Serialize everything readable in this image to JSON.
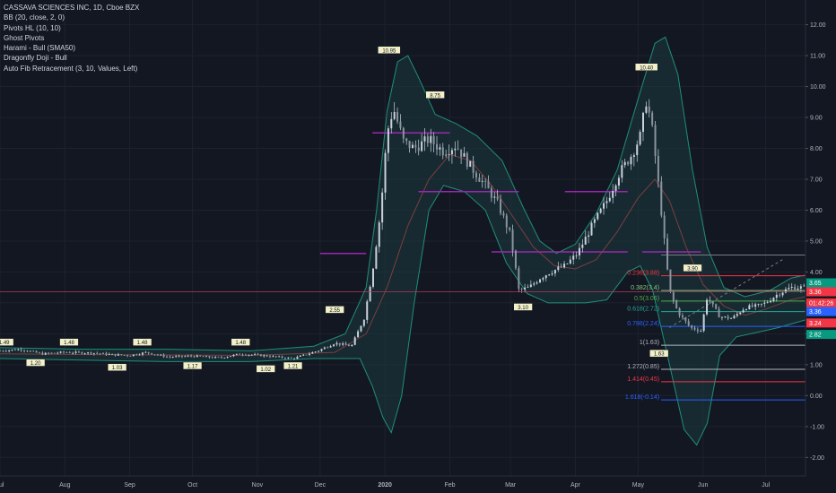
{
  "legend": {
    "title": "CASSAVA SCIENCES INC, 1D, Cboe BZX",
    "indicators": [
      "BB (20, close, 2, 0)",
      "Pivots HL (10, 10)",
      "Ghost Pivots",
      "Harami - Bull (SMA50)",
      "Dragonfly Doji - Bull",
      "Auto Fib Retracement (3, 10, Values, Left)"
    ]
  },
  "colors": {
    "background": "#131722",
    "grid": "#1e222d",
    "candle": "#c9d1dc",
    "bb_band": "#1f8f7a",
    "bb_fill": "#1b3b3e",
    "sma": "#7a3f3f",
    "pivot_line": "#9c27b0",
    "crosshair": "#b23c5a"
  },
  "chart_data": {
    "type": "candlestick",
    "y_axis": {
      "min": -2.6,
      "max": 12.8,
      "ticks": [
        "12.00",
        "11.00",
        "10.00",
        "9.00",
        "8.00",
        "7.00",
        "6.00",
        "5.00",
        "4.00",
        "3.00",
        "2.00",
        "1.00",
        "0.00",
        "-1.00",
        "-2.00"
      ]
    },
    "x_axis": {
      "labels": [
        {
          "label": "Jul",
          "day": 0
        },
        {
          "label": "Aug",
          "day": 31
        },
        {
          "label": "Sep",
          "day": 62
        },
        {
          "label": "Oct",
          "day": 92
        },
        {
          "label": "Nov",
          "day": 123
        },
        {
          "label": "Dec",
          "day": 153
        },
        {
          "label": "2020",
          "day": 184
        },
        {
          "label": "Feb",
          "day": 215
        },
        {
          "label": "Mar",
          "day": 244
        },
        {
          "label": "Apr",
          "day": 275
        },
        {
          "label": "May",
          "day": 305
        },
        {
          "label": "Jun",
          "day": 336
        },
        {
          "label": "Jul",
          "day": 366
        }
      ],
      "last_day": 385
    },
    "price_path": [
      [
        0,
        1.45
      ],
      [
        10,
        1.5
      ],
      [
        20,
        1.35
      ],
      [
        30,
        1.4
      ],
      [
        45,
        1.38
      ],
      [
        55,
        1.32
      ],
      [
        62,
        1.3
      ],
      [
        70,
        1.4
      ],
      [
        80,
        1.25
      ],
      [
        92,
        1.28
      ],
      [
        105,
        1.22
      ],
      [
        115,
        1.35
      ],
      [
        125,
        1.3
      ],
      [
        140,
        1.2
      ],
      [
        152,
        1.45
      ],
      [
        160,
        1.7
      ],
      [
        168,
        1.6
      ],
      [
        174,
        2.5
      ],
      [
        178,
        4.0
      ],
      [
        182,
        6.0
      ],
      [
        185,
        8.5
      ],
      [
        188,
        9.3
      ],
      [
        193,
        8.2
      ],
      [
        198,
        8.0
      ],
      [
        205,
        8.3
      ],
      [
        212,
        7.9
      ],
      [
        218,
        8.1
      ],
      [
        225,
        7.4
      ],
      [
        232,
        6.8
      ],
      [
        238,
        6.2
      ],
      [
        244,
        5.2
      ],
      [
        248,
        3.4
      ],
      [
        253,
        3.5
      ],
      [
        258,
        3.8
      ],
      [
        263,
        4.0
      ],
      [
        270,
        4.2
      ],
      [
        276,
        4.6
      ],
      [
        283,
        5.5
      ],
      [
        290,
        6.3
      ],
      [
        296,
        7.2
      ],
      [
        302,
        7.8
      ],
      [
        306,
        8.4
      ],
      [
        309,
        9.6
      ],
      [
        312,
        8.5
      ],
      [
        316,
        6.0
      ],
      [
        320,
        3.4
      ],
      [
        324,
        2.7
      ],
      [
        330,
        2.2
      ],
      [
        335,
        2.1
      ],
      [
        338,
        3.2
      ],
      [
        344,
        2.55
      ],
      [
        350,
        2.5
      ],
      [
        356,
        2.85
      ],
      [
        362,
        2.9
      ],
      [
        366,
        3.0
      ],
      [
        372,
        3.3
      ],
      [
        378,
        3.5
      ],
      [
        385,
        3.5
      ]
    ],
    "bb_upper": [
      [
        0,
        1.55
      ],
      [
        40,
        1.5
      ],
      [
        80,
        1.5
      ],
      [
        120,
        1.45
      ],
      [
        150,
        1.6
      ],
      [
        165,
        2.0
      ],
      [
        175,
        3.5
      ],
      [
        180,
        6.0
      ],
      [
        185,
        9.2
      ],
      [
        190,
        10.8
      ],
      [
        195,
        11.0
      ],
      [
        200,
        10.3
      ],
      [
        208,
        9.1
      ],
      [
        218,
        8.8
      ],
      [
        228,
        8.4
      ],
      [
        240,
        7.6
      ],
      [
        250,
        6.1
      ],
      [
        258,
        5.0
      ],
      [
        266,
        4.6
      ],
      [
        275,
        4.9
      ],
      [
        285,
        5.9
      ],
      [
        295,
        7.3
      ],
      [
        305,
        9.6
      ],
      [
        313,
        11.4
      ],
      [
        318,
        11.6
      ],
      [
        324,
        10.4
      ],
      [
        331,
        7.3
      ],
      [
        338,
        4.8
      ],
      [
        346,
        3.5
      ],
      [
        356,
        3.2
      ],
      [
        368,
        3.4
      ],
      [
        378,
        3.8
      ],
      [
        385,
        3.9
      ]
    ],
    "bb_lower": [
      [
        0,
        1.2
      ],
      [
        40,
        1.15
      ],
      [
        80,
        1.1
      ],
      [
        120,
        1.1
      ],
      [
        150,
        1.2
      ],
      [
        165,
        1.2
      ],
      [
        172,
        1.2
      ],
      [
        178,
        0.3
      ],
      [
        183,
        -0.7
      ],
      [
        187,
        -1.2
      ],
      [
        192,
        0.0
      ],
      [
        198,
        3.0
      ],
      [
        205,
        6.0
      ],
      [
        212,
        6.8
      ],
      [
        222,
        6.6
      ],
      [
        232,
        6.0
      ],
      [
        242,
        4.3
      ],
      [
        252,
        3.3
      ],
      [
        262,
        3.0
      ],
      [
        272,
        3.0
      ],
      [
        280,
        3.0
      ],
      [
        290,
        3.1
      ],
      [
        300,
        4.0
      ],
      [
        306,
        4.2
      ],
      [
        312,
        3.4
      ],
      [
        320,
        1.0
      ],
      [
        327,
        -1.1
      ],
      [
        333,
        -1.6
      ],
      [
        338,
        -0.9
      ],
      [
        344,
        1.3
      ],
      [
        352,
        1.9
      ],
      [
        362,
        2.05
      ],
      [
        372,
        2.2
      ],
      [
        385,
        2.45
      ]
    ],
    "sma": [
      [
        0,
        1.35
      ],
      [
        60,
        1.32
      ],
      [
        120,
        1.3
      ],
      [
        160,
        1.4
      ],
      [
        175,
        2.0
      ],
      [
        185,
        3.5
      ],
      [
        195,
        5.5
      ],
      [
        205,
        7.0
      ],
      [
        215,
        7.8
      ],
      [
        225,
        7.6
      ],
      [
        235,
        6.8
      ],
      [
        245,
        5.8
      ],
      [
        255,
        4.8
      ],
      [
        265,
        4.2
      ],
      [
        275,
        4.1
      ],
      [
        285,
        4.4
      ],
      [
        295,
        5.3
      ],
      [
        305,
        6.4
      ],
      [
        313,
        7.0
      ],
      [
        320,
        6.3
      ],
      [
        328,
        4.8
      ],
      [
        336,
        3.6
      ],
      [
        346,
        2.9
      ],
      [
        356,
        2.6
      ],
      [
        366,
        2.8
      ],
      [
        378,
        3.1
      ],
      [
        385,
        3.2
      ]
    ],
    "pivot_labels": [
      {
        "day": 2,
        "value": "1.49",
        "type": "high",
        "price": 1.5
      },
      {
        "day": 17,
        "value": "1.20",
        "type": "low",
        "price": 1.3
      },
      {
        "day": 33,
        "value": "1.48",
        "type": "high",
        "price": 1.5
      },
      {
        "day": 56,
        "value": "1.03",
        "type": "low",
        "price": 1.15
      },
      {
        "day": 68,
        "value": "1.48",
        "type": "high",
        "price": 1.5
      },
      {
        "day": 92,
        "value": "1.17",
        "type": "low",
        "price": 1.2
      },
      {
        "day": 115,
        "value": "1.48",
        "type": "high",
        "price": 1.5
      },
      {
        "day": 127,
        "value": "1.02",
        "type": "low",
        "price": 1.1
      },
      {
        "day": 140,
        "value": "1.21",
        "type": "low",
        "price": 1.2
      },
      {
        "day": 160,
        "value": "2.55",
        "type": "high",
        "price": 2.55
      },
      {
        "day": 186,
        "value": "10.95",
        "type": "high",
        "price": 10.95
      },
      {
        "day": 208,
        "value": "8.75",
        "type": "high",
        "price": 9.5
      },
      {
        "day": 250,
        "value": "3.10",
        "type": "low",
        "price": 3.1
      },
      {
        "day": 309,
        "value": "10.40",
        "type": "high",
        "price": 10.4
      },
      {
        "day": 331,
        "value": "3.90",
        "type": "high",
        "price": 3.9
      },
      {
        "day": 315,
        "value": "1.63",
        "type": "low",
        "price": 1.6
      }
    ],
    "pivot_lines": [
      {
        "start": 153,
        "end": 175,
        "price": 4.6
      },
      {
        "start": 178,
        "end": 215,
        "price": 8.5
      },
      {
        "start": 200,
        "end": 248,
        "price": 6.6
      },
      {
        "start": 235,
        "end": 300,
        "price": 4.65
      },
      {
        "start": 270,
        "end": 300,
        "price": 6.6
      },
      {
        "start": 307,
        "end": 335,
        "price": 4.65
      }
    ],
    "fib_levels": [
      {
        "label": "0.236(3.88)",
        "price": 3.88,
        "color": "#f23645"
      },
      {
        "label": "0.382(3.4)",
        "price": 3.4,
        "color": "#81c784"
      },
      {
        "label": "0.5(3.06)",
        "price": 3.06,
        "color": "#4caf50"
      },
      {
        "label": "0.618(2.72)",
        "price": 2.72,
        "color": "#26a69a"
      },
      {
        "label": "0.786(2.24)",
        "price": 2.24,
        "color": "#2962ff"
      },
      {
        "label": "1(1.63)",
        "price": 1.63,
        "color": "#b2b5be"
      },
      {
        "label": "1.272(0.85)",
        "price": 0.85,
        "color": "#b2b5be"
      },
      {
        "label": "1.414(0.45)",
        "price": 0.45,
        "color": "#f23645"
      },
      {
        "label": "1.618(-0.14)",
        "price": -0.14,
        "color": "#2962ff"
      }
    ],
    "fib_top": {
      "price": 4.55
    },
    "crosshair_price": 3.36,
    "price_badges": [
      {
        "text": "3.65",
        "price": 3.65,
        "color": "#089981"
      },
      {
        "text": "3.36",
        "price": 3.36,
        "color": "#f23645"
      },
      {
        "text": "01:42:26",
        "price": 3.0,
        "color": "#f23645"
      },
      {
        "text": "3.36",
        "price": 2.72,
        "color": "#2962ff"
      },
      {
        "text": "3.24",
        "price": 2.35,
        "color": "#f23645"
      },
      {
        "text": "2.82",
        "price": 1.98,
        "color": "#089981"
      }
    ]
  }
}
